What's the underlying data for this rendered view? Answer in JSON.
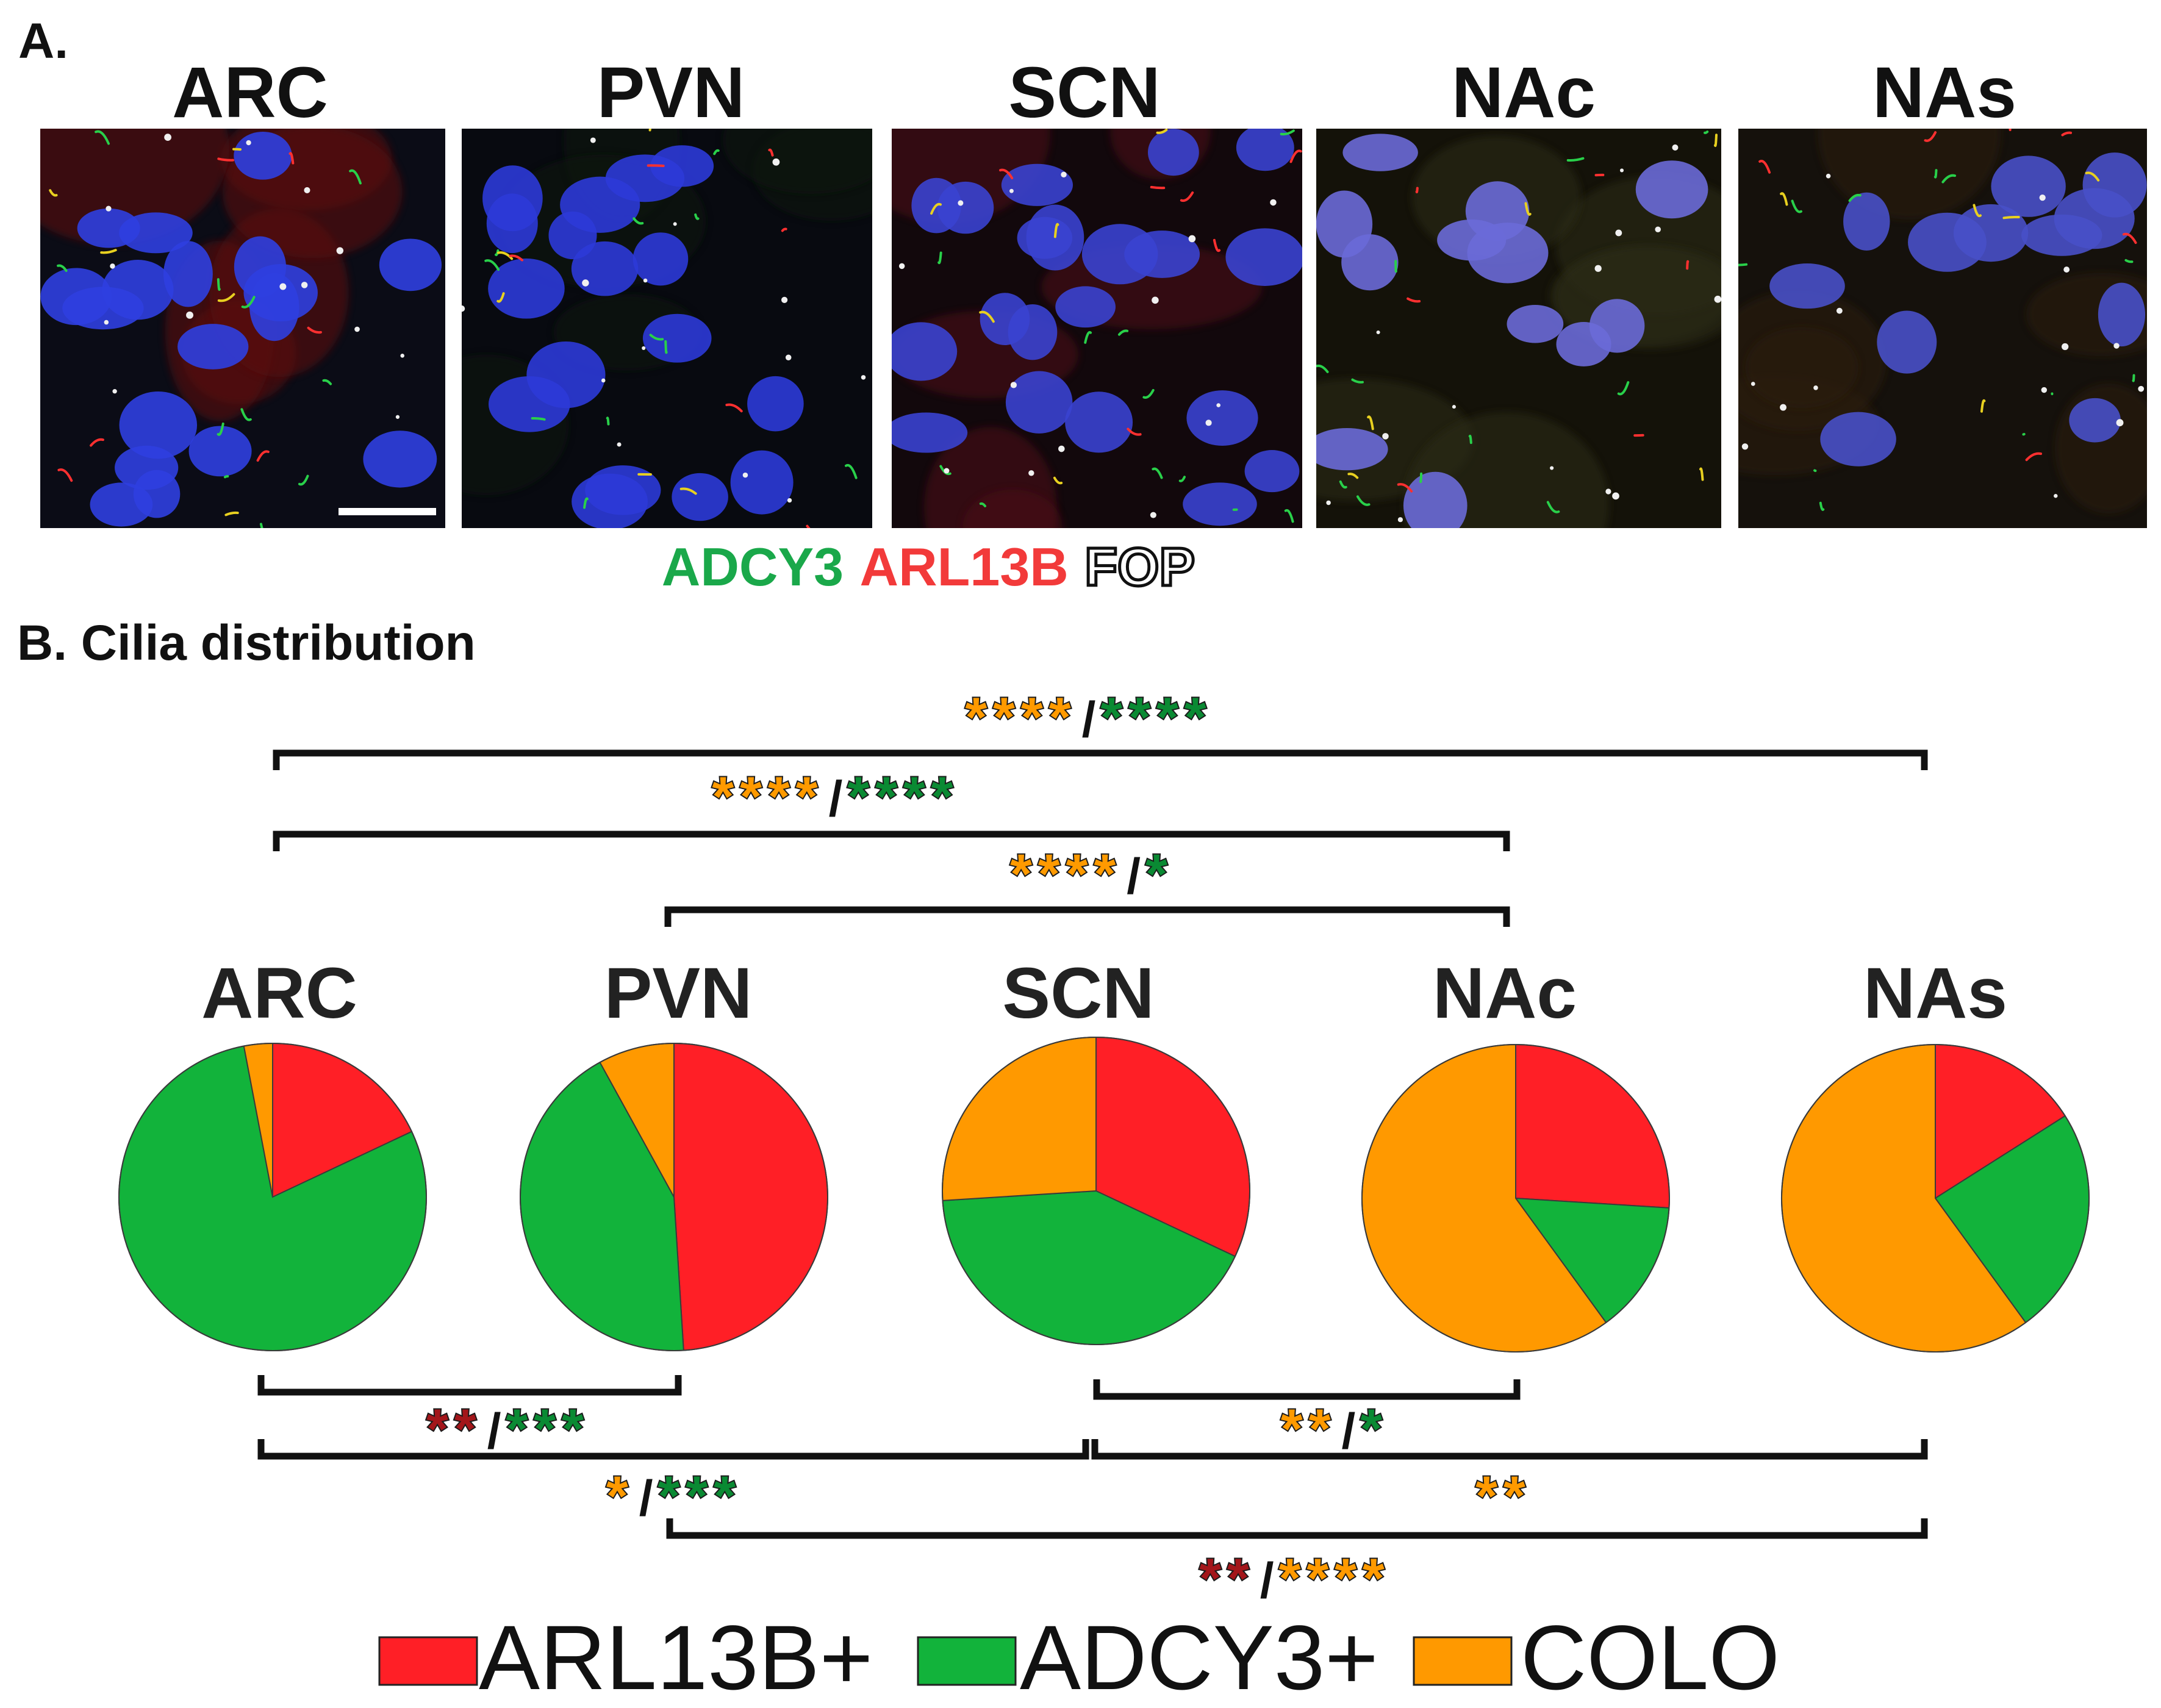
{
  "panel_a": {
    "label": "A.",
    "regions": [
      "ARC",
      "PVN",
      "SCN",
      "NAc",
      "NAs"
    ],
    "stain_labels": [
      {
        "text": "ADCY3",
        "color": "#1aa84a"
      },
      {
        "text": "ARL13B",
        "color": "#f23a3a"
      },
      {
        "text": "FOP",
        "color": "#ffffff",
        "outline": "#111111"
      }
    ]
  },
  "panel_b": {
    "title": "B. Cilia distribution"
  },
  "colors": {
    "arl13b": "#ff1f26",
    "adcy3": "#12b33b",
    "colo": "#ff9900",
    "star_red": "#a3161a",
    "star_green": "#0a8a33",
    "star_orange": "#ff9a00",
    "star_outline": "#1b1b1b",
    "microscopy_bg": "#0a0d14",
    "nucleus": "#2b3ad6"
  },
  "chart_data": {
    "type": "pie",
    "series_names": [
      "ARL13B+",
      "ADCY3+",
      "COLO"
    ],
    "pies": [
      {
        "region": "ARC",
        "values": [
          0.18,
          0.79,
          0.03
        ]
      },
      {
        "region": "PVN",
        "values": [
          0.49,
          0.43,
          0.08
        ]
      },
      {
        "region": "SCN",
        "values": [
          0.32,
          0.42,
          0.26
        ]
      },
      {
        "region": "NAc",
        "values": [
          0.26,
          0.14,
          0.6
        ]
      },
      {
        "region": "NAs",
        "values": [
          0.16,
          0.24,
          0.6
        ]
      }
    ],
    "legend": [
      "ARL13B+",
      "ADCY3+",
      "COLO"
    ],
    "legend_position": "bottom",
    "comparisons": [
      {
        "from": "ARC",
        "to": "NAs",
        "side": "top",
        "tokens": [
          {
            "text": "****",
            "color": "orange"
          },
          {
            "text": "/",
            "color": "black"
          },
          {
            "text": "****",
            "color": "green"
          }
        ]
      },
      {
        "from": "ARC",
        "to": "NAc",
        "side": "top",
        "tokens": [
          {
            "text": "****",
            "color": "orange"
          },
          {
            "text": "/",
            "color": "black"
          },
          {
            "text": "****",
            "color": "green"
          }
        ]
      },
      {
        "from": "PVN",
        "to": "NAc",
        "side": "top",
        "tokens": [
          {
            "text": "****",
            "color": "orange"
          },
          {
            "text": "/",
            "color": "black"
          },
          {
            "text": "*",
            "color": "green"
          }
        ]
      },
      {
        "from": "ARC",
        "to": "PVN",
        "side": "bottom",
        "tokens": [
          {
            "text": "**",
            "color": "red"
          },
          {
            "text": "/",
            "color": "black"
          },
          {
            "text": "***",
            "color": "green"
          }
        ]
      },
      {
        "from": "SCN",
        "to": "NAc",
        "side": "bottom",
        "tokens": [
          {
            "text": "**",
            "color": "orange"
          },
          {
            "text": "/",
            "color": "black"
          },
          {
            "text": "*",
            "color": "green"
          }
        ]
      },
      {
        "from": "ARC",
        "to": "SCN",
        "side": "bottom",
        "tokens": [
          {
            "text": "*",
            "color": "orange"
          },
          {
            "text": "/",
            "color": "black"
          },
          {
            "text": "***",
            "color": "green"
          }
        ]
      },
      {
        "from": "SCN",
        "to": "NAs",
        "side": "bottom",
        "tokens": [
          {
            "text": "**",
            "color": "orange"
          }
        ]
      },
      {
        "from": "PVN",
        "to": "NAs",
        "side": "bottom",
        "tokens": [
          {
            "text": "**",
            "color": "red"
          },
          {
            "text": "/",
            "color": "black"
          },
          {
            "text": "****",
            "color": "orange"
          }
        ]
      }
    ]
  }
}
